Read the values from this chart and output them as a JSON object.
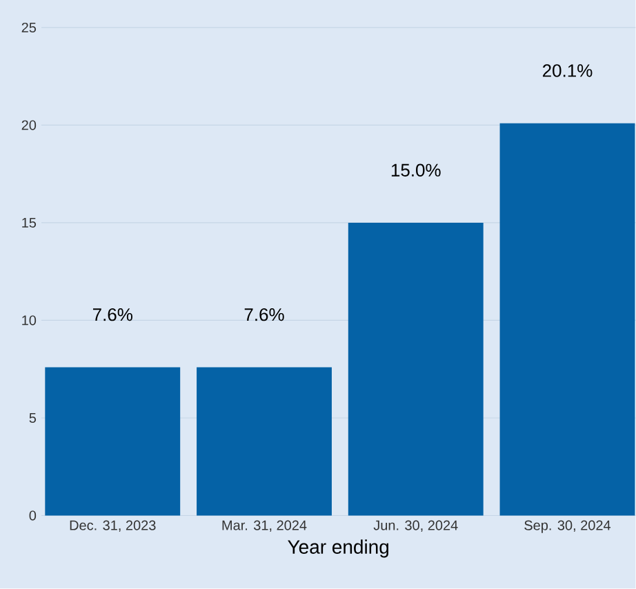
{
  "chart_data": {
    "type": "bar",
    "xlabel": "Year ending",
    "categories": [
      "Dec. 31, 2023",
      "Mar. 31, 2024",
      "Jun. 30, 2024",
      "Sep. 30, 2024"
    ],
    "values": [
      7.6,
      7.6,
      15.0,
      20.1
    ],
    "value_labels": [
      "7.6%",
      "7.6%",
      "15.0%",
      "20.1%"
    ],
    "color": "#0562a6",
    "ylim": [
      0,
      25
    ],
    "yticks": [
      0,
      5,
      10,
      15,
      20,
      25
    ],
    "grid": "y"
  }
}
